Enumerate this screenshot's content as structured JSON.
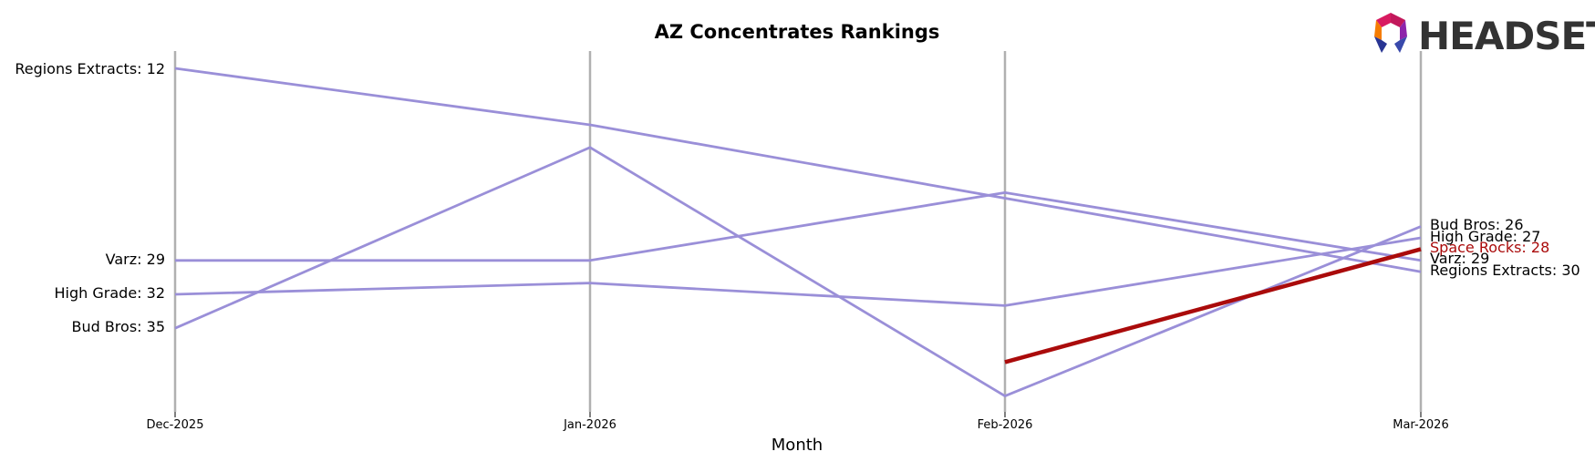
{
  "chart_data": {
    "type": "line",
    "title": "AZ Concentrates Rankings",
    "xlabel": "Month",
    "ylabel": "",
    "categories": [
      "Dec-2025",
      "Jan-2026",
      "Feb-2026",
      "Mar-2026"
    ],
    "y_inverted": true,
    "ylim": [
      44,
      12
    ],
    "grid": "vertical lines at each month",
    "legend": "none (series labelled at line ends)",
    "series": [
      {
        "name": "Regions Extracts",
        "values": [
          12,
          17,
          null,
          30
        ],
        "color": "#9a8fd8",
        "highlight": false
      },
      {
        "name": "Varz",
        "values": [
          29,
          29,
          23,
          29
        ],
        "color": "#9a8fd8",
        "highlight": false
      },
      {
        "name": "High Grade",
        "values": [
          32,
          31,
          33,
          27
        ],
        "color": "#9a8fd8",
        "highlight": false
      },
      {
        "name": "Bud Bros",
        "values": [
          35,
          19,
          41,
          26
        ],
        "color": "#9a8fd8",
        "highlight": false
      },
      {
        "name": "Space Rocks",
        "values": [
          null,
          null,
          38,
          28
        ],
        "color": "#aa0b0b",
        "highlight": true
      }
    ]
  },
  "left_labels": [
    {
      "text": "Regions Extracts: 12",
      "series": 0
    },
    {
      "text": "Varz: 29",
      "series": 1
    },
    {
      "text": "High Grade: 32",
      "series": 2
    },
    {
      "text": "Bud Bros: 35",
      "series": 3
    }
  ],
  "right_labels": [
    {
      "text": "Bud Bros: 26",
      "series": 3
    },
    {
      "text": "High Grade: 27",
      "series": 2
    },
    {
      "text": "Space Rocks: 28",
      "series": 4
    },
    {
      "text": "Varz: 29",
      "series": 1
    },
    {
      "text": "Regions Extracts: 30",
      "series": 0
    }
  ],
  "logo": {
    "text": "HEADSET",
    "icon": "headset-logo-icon"
  },
  "colors": {
    "gridline": "#b0b0b0",
    "series_default": "#9a8fd8",
    "highlight": "#aa0b0b"
  }
}
